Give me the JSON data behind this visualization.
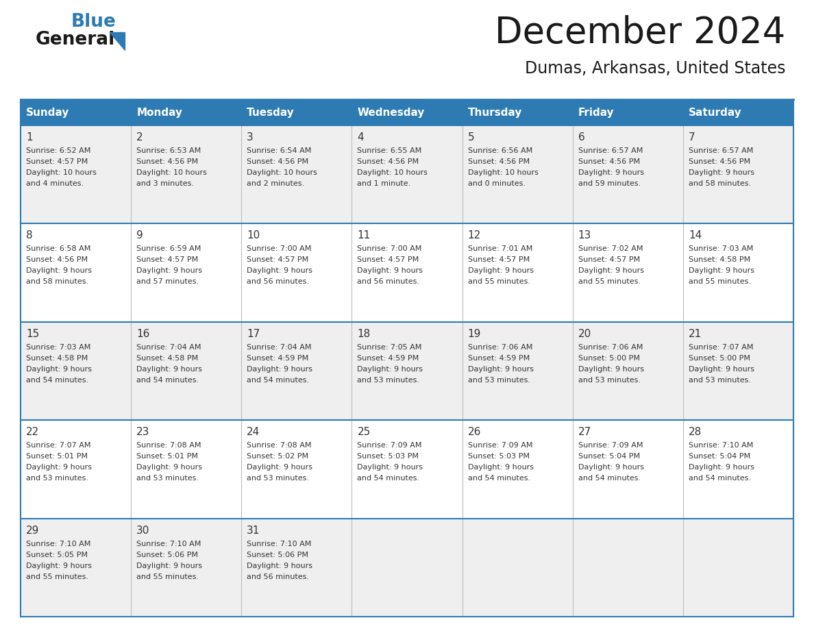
{
  "title": "December 2024",
  "subtitle": "Dumas, Arkansas, United States",
  "header_bg_color": "#2E7BB4",
  "header_text_color": "#FFFFFF",
  "cell_bg_color_light": "#EFEFEF",
  "cell_bg_color_white": "#FFFFFF",
  "border_color": "#2E7BB4",
  "row_line_color": "#2E7BB4",
  "text_color": "#333333",
  "day_headers": [
    "Sunday",
    "Monday",
    "Tuesday",
    "Wednesday",
    "Thursday",
    "Friday",
    "Saturday"
  ],
  "days": [
    {
      "date": 1,
      "row": 0,
      "col": 0,
      "sunrise": "6:52 AM",
      "sunset": "4:57 PM",
      "daylight_line1": "Daylight: 10 hours",
      "daylight_line2": "and 4 minutes."
    },
    {
      "date": 2,
      "row": 0,
      "col": 1,
      "sunrise": "6:53 AM",
      "sunset": "4:56 PM",
      "daylight_line1": "Daylight: 10 hours",
      "daylight_line2": "and 3 minutes."
    },
    {
      "date": 3,
      "row": 0,
      "col": 2,
      "sunrise": "6:54 AM",
      "sunset": "4:56 PM",
      "daylight_line1": "Daylight: 10 hours",
      "daylight_line2": "and 2 minutes."
    },
    {
      "date": 4,
      "row": 0,
      "col": 3,
      "sunrise": "6:55 AM",
      "sunset": "4:56 PM",
      "daylight_line1": "Daylight: 10 hours",
      "daylight_line2": "and 1 minute."
    },
    {
      "date": 5,
      "row": 0,
      "col": 4,
      "sunrise": "6:56 AM",
      "sunset": "4:56 PM",
      "daylight_line1": "Daylight: 10 hours",
      "daylight_line2": "and 0 minutes."
    },
    {
      "date": 6,
      "row": 0,
      "col": 5,
      "sunrise": "6:57 AM",
      "sunset": "4:56 PM",
      "daylight_line1": "Daylight: 9 hours",
      "daylight_line2": "and 59 minutes."
    },
    {
      "date": 7,
      "row": 0,
      "col": 6,
      "sunrise": "6:57 AM",
      "sunset": "4:56 PM",
      "daylight_line1": "Daylight: 9 hours",
      "daylight_line2": "and 58 minutes."
    },
    {
      "date": 8,
      "row": 1,
      "col": 0,
      "sunrise": "6:58 AM",
      "sunset": "4:56 PM",
      "daylight_line1": "Daylight: 9 hours",
      "daylight_line2": "and 58 minutes."
    },
    {
      "date": 9,
      "row": 1,
      "col": 1,
      "sunrise": "6:59 AM",
      "sunset": "4:57 PM",
      "daylight_line1": "Daylight: 9 hours",
      "daylight_line2": "and 57 minutes."
    },
    {
      "date": 10,
      "row": 1,
      "col": 2,
      "sunrise": "7:00 AM",
      "sunset": "4:57 PM",
      "daylight_line1": "Daylight: 9 hours",
      "daylight_line2": "and 56 minutes."
    },
    {
      "date": 11,
      "row": 1,
      "col": 3,
      "sunrise": "7:00 AM",
      "sunset": "4:57 PM",
      "daylight_line1": "Daylight: 9 hours",
      "daylight_line2": "and 56 minutes."
    },
    {
      "date": 12,
      "row": 1,
      "col": 4,
      "sunrise": "7:01 AM",
      "sunset": "4:57 PM",
      "daylight_line1": "Daylight: 9 hours",
      "daylight_line2": "and 55 minutes."
    },
    {
      "date": 13,
      "row": 1,
      "col": 5,
      "sunrise": "7:02 AM",
      "sunset": "4:57 PM",
      "daylight_line1": "Daylight: 9 hours",
      "daylight_line2": "and 55 minutes."
    },
    {
      "date": 14,
      "row": 1,
      "col": 6,
      "sunrise": "7:03 AM",
      "sunset": "4:58 PM",
      "daylight_line1": "Daylight: 9 hours",
      "daylight_line2": "and 55 minutes."
    },
    {
      "date": 15,
      "row": 2,
      "col": 0,
      "sunrise": "7:03 AM",
      "sunset": "4:58 PM",
      "daylight_line1": "Daylight: 9 hours",
      "daylight_line2": "and 54 minutes."
    },
    {
      "date": 16,
      "row": 2,
      "col": 1,
      "sunrise": "7:04 AM",
      "sunset": "4:58 PM",
      "daylight_line1": "Daylight: 9 hours",
      "daylight_line2": "and 54 minutes."
    },
    {
      "date": 17,
      "row": 2,
      "col": 2,
      "sunrise": "7:04 AM",
      "sunset": "4:59 PM",
      "daylight_line1": "Daylight: 9 hours",
      "daylight_line2": "and 54 minutes."
    },
    {
      "date": 18,
      "row": 2,
      "col": 3,
      "sunrise": "7:05 AM",
      "sunset": "4:59 PM",
      "daylight_line1": "Daylight: 9 hours",
      "daylight_line2": "and 53 minutes."
    },
    {
      "date": 19,
      "row": 2,
      "col": 4,
      "sunrise": "7:06 AM",
      "sunset": "4:59 PM",
      "daylight_line1": "Daylight: 9 hours",
      "daylight_line2": "and 53 minutes."
    },
    {
      "date": 20,
      "row": 2,
      "col": 5,
      "sunrise": "7:06 AM",
      "sunset": "5:00 PM",
      "daylight_line1": "Daylight: 9 hours",
      "daylight_line2": "and 53 minutes."
    },
    {
      "date": 21,
      "row": 2,
      "col": 6,
      "sunrise": "7:07 AM",
      "sunset": "5:00 PM",
      "daylight_line1": "Daylight: 9 hours",
      "daylight_line2": "and 53 minutes."
    },
    {
      "date": 22,
      "row": 3,
      "col": 0,
      "sunrise": "7:07 AM",
      "sunset": "5:01 PM",
      "daylight_line1": "Daylight: 9 hours",
      "daylight_line2": "and 53 minutes."
    },
    {
      "date": 23,
      "row": 3,
      "col": 1,
      "sunrise": "7:08 AM",
      "sunset": "5:01 PM",
      "daylight_line1": "Daylight: 9 hours",
      "daylight_line2": "and 53 minutes."
    },
    {
      "date": 24,
      "row": 3,
      "col": 2,
      "sunrise": "7:08 AM",
      "sunset": "5:02 PM",
      "daylight_line1": "Daylight: 9 hours",
      "daylight_line2": "and 53 minutes."
    },
    {
      "date": 25,
      "row": 3,
      "col": 3,
      "sunrise": "7:09 AM",
      "sunset": "5:03 PM",
      "daylight_line1": "Daylight: 9 hours",
      "daylight_line2": "and 54 minutes."
    },
    {
      "date": 26,
      "row": 3,
      "col": 4,
      "sunrise": "7:09 AM",
      "sunset": "5:03 PM",
      "daylight_line1": "Daylight: 9 hours",
      "daylight_line2": "and 54 minutes."
    },
    {
      "date": 27,
      "row": 3,
      "col": 5,
      "sunrise": "7:09 AM",
      "sunset": "5:04 PM",
      "daylight_line1": "Daylight: 9 hours",
      "daylight_line2": "and 54 minutes."
    },
    {
      "date": 28,
      "row": 3,
      "col": 6,
      "sunrise": "7:10 AM",
      "sunset": "5:04 PM",
      "daylight_line1": "Daylight: 9 hours",
      "daylight_line2": "and 54 minutes."
    },
    {
      "date": 29,
      "row": 4,
      "col": 0,
      "sunrise": "7:10 AM",
      "sunset": "5:05 PM",
      "daylight_line1": "Daylight: 9 hours",
      "daylight_line2": "and 55 minutes."
    },
    {
      "date": 30,
      "row": 4,
      "col": 1,
      "sunrise": "7:10 AM",
      "sunset": "5:06 PM",
      "daylight_line1": "Daylight: 9 hours",
      "daylight_line2": "and 55 minutes."
    },
    {
      "date": 31,
      "row": 4,
      "col": 2,
      "sunrise": "7:10 AM",
      "sunset": "5:06 PM",
      "daylight_line1": "Daylight: 9 hours",
      "daylight_line2": "and 56 minutes."
    }
  ],
  "num_rows": 5,
  "figwidth": 11.88,
  "figheight": 9.18,
  "dpi": 100
}
